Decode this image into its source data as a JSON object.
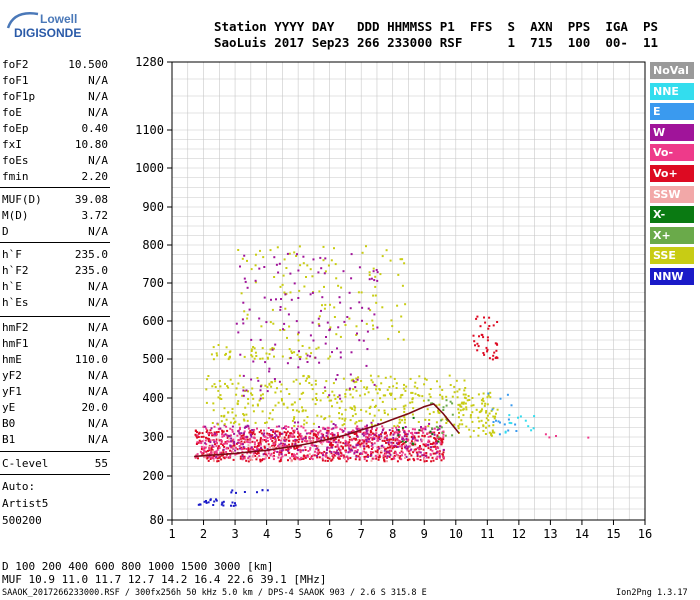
{
  "logo": {
    "line1": "Lowell",
    "line2": "DIGISONDE"
  },
  "header": {
    "row1": "Station YYYY DAY   DDD HHMMSS P1  FFS  S  AXN  PPS  IGA  PS",
    "row2": "SaoLuis 2017 Sep23 266 233000 RSF      1  715  100  00-  11"
  },
  "params": [
    {
      "k": "foF2",
      "v": "10.500"
    },
    {
      "k": "foF1",
      "v": "N/A"
    },
    {
      "k": "foF1p",
      "v": "N/A"
    },
    {
      "k": "foE",
      "v": "N/A"
    },
    {
      "k": "foEp",
      "v": "0.40"
    },
    {
      "k": "fxI",
      "v": "10.80"
    },
    {
      "k": "foEs",
      "v": "N/A"
    },
    {
      "k": "fmin",
      "v": "2.20"
    },
    {
      "k": "MUF(D)",
      "v": "39.08"
    },
    {
      "k": "M(D)",
      "v": "3.72"
    },
    {
      "k": "D",
      "v": "N/A"
    },
    {
      "k": "h`F",
      "v": "235.0"
    },
    {
      "k": "h`F2",
      "v": "235.0"
    },
    {
      "k": "h`E",
      "v": "N/A"
    },
    {
      "k": "h`Es",
      "v": "N/A"
    },
    {
      "k": "hmF2",
      "v": "N/A"
    },
    {
      "k": "hmF1",
      "v": "N/A"
    },
    {
      "k": "hmE",
      "v": "110.0"
    },
    {
      "k": "yF2",
      "v": "N/A"
    },
    {
      "k": "yF1",
      "v": "N/A"
    },
    {
      "k": "yE",
      "v": "20.0"
    },
    {
      "k": "B0",
      "v": "N/A"
    },
    {
      "k": "B1",
      "v": "N/A"
    },
    {
      "k": "C-level",
      "v": "55"
    }
  ],
  "info": [
    "Auto:",
    "Artist5",
    "500200"
  ],
  "legend": [
    {
      "label": "NoVal",
      "color": "#9a9a9a"
    },
    {
      "label": "NNE",
      "color": "#33ddee"
    },
    {
      "label": "E",
      "color": "#3a9aef"
    },
    {
      "label": "W",
      "color": "#a0149a"
    },
    {
      "label": "Vo-",
      "color": "#ee3a8a"
    },
    {
      "label": "Vo+",
      "color": "#dd0a22"
    },
    {
      "label": "SSW",
      "color": "#f2a8a8"
    },
    {
      "label": "X-",
      "color": "#0a7a12"
    },
    {
      "label": "X+",
      "color": "#6aaa4a"
    },
    {
      "label": "SSE",
      "color": "#c8cc14"
    },
    {
      "label": "NNW",
      "color": "#1a1ac8"
    }
  ],
  "footer": {
    "d_row": "D     100  200  400  600  800 1000 1500 3000 [km]",
    "muf_row": "MUF  10.9 11.0 11.7 12.7 14.2 16.4 22.6 39.1 [MHz]",
    "file_row": "SAAOK_2017266233000.RSF / 300fx256h 50 kHz 5.0 km / DPS-4 SAAOK 903 / 2.6 S 315.8 E",
    "version": "Ion2Png 1.3.17"
  },
  "chart_data": {
    "type": "scatter",
    "xlabel": "",
    "ylabel": "",
    "xlim": [
      1,
      16
    ],
    "ylim": [
      80,
      1280
    ],
    "x_ticks": [
      1,
      2,
      3,
      4,
      5,
      6,
      7,
      8,
      9,
      10,
      11,
      12,
      13,
      14,
      15,
      16
    ],
    "y_ticks": [
      80,
      200,
      300,
      400,
      500,
      600,
      700,
      800,
      900,
      1000,
      1100,
      1280
    ],
    "y_scale": "nonlinear (ionogram virtual height)",
    "trace": {
      "name": "",
      "color": "#7a0a14",
      "points": [
        [
          1.7,
          250
        ],
        [
          2.0,
          252
        ],
        [
          2.5,
          255
        ],
        [
          3.0,
          258
        ],
        [
          3.5,
          262
        ],
        [
          4.0,
          266
        ],
        [
          4.5,
          272
        ],
        [
          5.0,
          278
        ],
        [
          5.5,
          286
        ],
        [
          6.0,
          295
        ],
        [
          6.5,
          305
        ],
        [
          7.0,
          318
        ],
        [
          7.5,
          330
        ],
        [
          8.0,
          345
        ],
        [
          8.5,
          360
        ],
        [
          9.0,
          378
        ],
        [
          9.3,
          385
        ],
        [
          9.6,
          360
        ],
        [
          9.9,
          330
        ],
        [
          10.1,
          310
        ]
      ]
    },
    "clusters": [
      {
        "series": "Vo+",
        "x": [
          1.7,
          9.6
        ],
        "y": [
          240,
          320
        ],
        "density": 0.55
      },
      {
        "series": "Vo-",
        "x": [
          1.7,
          9.6
        ],
        "y": [
          245,
          330
        ],
        "density": 0.35
      },
      {
        "series": "W",
        "x": [
          2.0,
          9.6
        ],
        "y": [
          250,
          340
        ],
        "density": 0.15
      },
      {
        "series": "NNW",
        "x": [
          1.8,
          3.0
        ],
        "y": [
          120,
          140
        ],
        "density": 0.5
      },
      {
        "series": "NNW",
        "x": [
          2.8,
          4.2
        ],
        "y": [
          155,
          165
        ],
        "density": 0.3
      },
      {
        "series": "SSE",
        "x": [
          2.0,
          10.3
        ],
        "y": [
          330,
          460
        ],
        "density": 0.16
      },
      {
        "series": "SSE",
        "x": [
          2.2,
          6.0
        ],
        "y": [
          500,
          540
        ],
        "density": 0.18
      },
      {
        "series": "SSE",
        "x": [
          10.0,
          11.3
        ],
        "y": [
          300,
          420
        ],
        "density": 0.25
      },
      {
        "series": "SSE",
        "x": [
          3.0,
          8.5
        ],
        "y": [
          550,
          800
        ],
        "density": 0.04
      },
      {
        "series": "W",
        "x": [
          3.0,
          7.5
        ],
        "y": [
          400,
          780
        ],
        "density": 0.04
      },
      {
        "series": "Vo+",
        "x": [
          10.5,
          11.3
        ],
        "y": [
          500,
          620
        ],
        "density": 0.2
      },
      {
        "series": "NNE",
        "x": [
          11.5,
          12.5
        ],
        "y": [
          310,
          360
        ],
        "density": 0.12
      },
      {
        "series": "E",
        "x": [
          11.0,
          12.0
        ],
        "y": [
          300,
          420
        ],
        "density": 0.06
      },
      {
        "series": "X+",
        "x": [
          9.0,
          10.0
        ],
        "y": [
          300,
          420
        ],
        "density": 0.08
      },
      {
        "series": "X-",
        "x": [
          8.0,
          9.5
        ],
        "y": [
          280,
          360
        ],
        "density": 0.05
      },
      {
        "series": "SSW",
        "x": [
          2.0,
          9.0
        ],
        "y": [
          240,
          300
        ],
        "density": 0.05
      },
      {
        "series": "Vo-",
        "x": [
          12.5,
          14.6
        ],
        "y": [
          295,
          310
        ],
        "density": 0.06
      }
    ]
  }
}
